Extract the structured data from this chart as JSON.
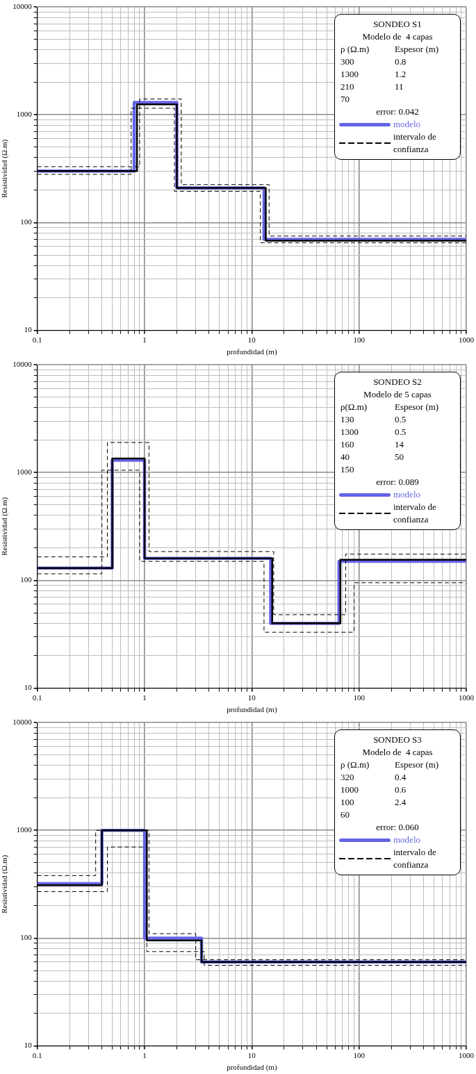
{
  "chart_data": [
    {
      "type": "step",
      "title": "SONDEO S1",
      "subtitle": "Modelo de  4 capas",
      "xlabel": "profundidad (m)",
      "ylabel": "Resistividad (Ω.m)",
      "log": "xy",
      "grid": true,
      "legend": "top right",
      "marker": "none",
      "annotations": [
        "ρ (Ω.m)\tEspesor (m)",
        "300\t0.8",
        "1300\t1.2",
        "210\t11",
        "70\t",
        "error: 0.042"
      ],
      "xlim": [
        0.1,
        1000
      ],
      "ylim": [
        10,
        10000
      ],
      "xticks": [
        0.1,
        {
          "value": 0.2,
          "label": null
        },
        {
          "value": 0.3,
          "label": null
        },
        {
          "value": 0.4,
          "label": null
        },
        {
          "value": 0.5,
          "label": null
        },
        {
          "value": 0.6,
          "label": null
        },
        {
          "value": 0.7,
          "label": null
        },
        {
          "value": 0.8,
          "label": null
        },
        {
          "value": 0.9,
          "label": null
        },
        1,
        {
          "value": 2,
          "label": null
        },
        {
          "value": 3,
          "label": null
        },
        {
          "value": 4,
          "label": null
        },
        {
          "value": 5,
          "label": null
        },
        {
          "value": 6,
          "label": null
        },
        {
          "value": 7,
          "label": null
        },
        {
          "value": 8,
          "label": null
        },
        {
          "value": 9,
          "label": null
        },
        10,
        {
          "value": 20,
          "label": null
        },
        {
          "value": 30,
          "label": null
        },
        {
          "value": 40,
          "label": null
        },
        {
          "value": 50,
          "label": null
        },
        {
          "value": 60,
          "label": null
        },
        {
          "value": 70,
          "label": null
        },
        {
          "value": 80,
          "label": null
        },
        {
          "value": 90,
          "label": null
        },
        100,
        {
          "value": 200,
          "label": null
        },
        {
          "value": 300,
          "label": null
        },
        {
          "value": 400,
          "label": null
        },
        {
          "value": 500,
          "label": null
        },
        {
          "value": 600,
          "label": null
        },
        {
          "value": 700,
          "label": null
        },
        {
          "value": 800,
          "label": null
        },
        {
          "value": 900,
          "label": null
        },
        1000
      ],
      "yticks": [
        10,
        {
          "value": 20,
          "label": null
        },
        {
          "value": 30,
          "label": null
        },
        {
          "value": 40,
          "label": null
        },
        {
          "value": 50,
          "label": null
        },
        {
          "value": 60,
          "label": null
        },
        {
          "value": 70,
          "label": null
        },
        {
          "value": 80,
          "label": null
        },
        {
          "value": 90,
          "label": null
        },
        100,
        {
          "value": 200,
          "label": null
        },
        {
          "value": 300,
          "label": null
        },
        {
          "value": 400,
          "label": null
        },
        {
          "value": 500,
          "label": null
        },
        {
          "value": 600,
          "label": null
        },
        {
          "value": 700,
          "label": null
        },
        {
          "value": 800,
          "label": null
        },
        {
          "value": 900,
          "label": null
        },
        1000,
        {
          "value": 2000,
          "label": null
        },
        {
          "value": 3000,
          "label": null
        },
        {
          "value": 4000,
          "label": null
        },
        {
          "value": 5000,
          "label": null
        },
        {
          "value": 6000,
          "label": null
        },
        {
          "value": 7000,
          "label": null
        },
        {
          "value": 8000,
          "label": null
        },
        {
          "value": 9000,
          "label": null
        },
        10000
      ],
      "series": [
        {
          "color": "#000000",
          "line_style": "dashed",
          "x": [
            0.1,
            0.9,
            2.2,
            14.5,
            1000
          ],
          "values": [
            330,
            1400,
            225,
            75,
            75
          ]
        },
        {
          "name": "intervalo de confianza",
          "color": "#000000",
          "line_style": "dashed",
          "x": [
            0.1,
            0.75,
            1.9,
            12,
            1000
          ],
          "values": [
            280,
            1150,
            195,
            65,
            65
          ]
        },
        {
          "color": "#000000",
          "line_style": "solid",
          "x": [
            0.1,
            0.85,
            2,
            13.5,
            1000
          ],
          "values": [
            300,
            1250,
            210,
            68,
            68
          ]
        },
        {
          "name": "modelo",
          "color": "#6464e6",
          "line_style": "solid",
          "x": [
            0.1,
            0.8,
            2,
            13,
            1000
          ],
          "values": [
            300,
            1300,
            210,
            70,
            70
          ]
        }
      ]
    },
    {
      "type": "step",
      "title": "SONDEO S2",
      "subtitle": "Modelo de 5 capas",
      "xlabel": "profundidad (m)",
      "ylabel": "Resistividad (Ω.m)",
      "log": "xy",
      "grid": true,
      "legend": "top right",
      "marker": "none",
      "annotations": [
        "ρ(Ω.m)\tEspesor (m)",
        "130\t0.5",
        "1300\t0.5",
        "160\t14",
        "40\t50",
        "150\t",
        "error: 0.089"
      ],
      "xlim": [
        0.1,
        1000
      ],
      "ylim": [
        10,
        10000
      ],
      "xticks": [
        0.1,
        {
          "value": 0.2,
          "label": null
        },
        {
          "value": 0.3,
          "label": null
        },
        {
          "value": 0.4,
          "label": null
        },
        {
          "value": 0.5,
          "label": null
        },
        {
          "value": 0.6,
          "label": null
        },
        {
          "value": 0.7,
          "label": null
        },
        {
          "value": 0.8,
          "label": null
        },
        {
          "value": 0.9,
          "label": null
        },
        1,
        {
          "value": 2,
          "label": null
        },
        {
          "value": 3,
          "label": null
        },
        {
          "value": 4,
          "label": null
        },
        {
          "value": 5,
          "label": null
        },
        {
          "value": 6,
          "label": null
        },
        {
          "value": 7,
          "label": null
        },
        {
          "value": 8,
          "label": null
        },
        {
          "value": 9,
          "label": null
        },
        10,
        {
          "value": 20,
          "label": null
        },
        {
          "value": 30,
          "label": null
        },
        {
          "value": 40,
          "label": null
        },
        {
          "value": 50,
          "label": null
        },
        {
          "value": 60,
          "label": null
        },
        {
          "value": 70,
          "label": null
        },
        {
          "value": 80,
          "label": null
        },
        {
          "value": 90,
          "label": null
        },
        100,
        {
          "value": 200,
          "label": null
        },
        {
          "value": 300,
          "label": null
        },
        {
          "value": 400,
          "label": null
        },
        {
          "value": 500,
          "label": null
        },
        {
          "value": 600,
          "label": null
        },
        {
          "value": 700,
          "label": null
        },
        {
          "value": 800,
          "label": null
        },
        {
          "value": 900,
          "label": null
        },
        1000
      ],
      "yticks": [
        10,
        {
          "value": 20,
          "label": null
        },
        {
          "value": 30,
          "label": null
        },
        {
          "value": 40,
          "label": null
        },
        {
          "value": 50,
          "label": null
        },
        {
          "value": 60,
          "label": null
        },
        {
          "value": 70,
          "label": null
        },
        {
          "value": 80,
          "label": null
        },
        {
          "value": 90,
          "label": null
        },
        100,
        {
          "value": 200,
          "label": null
        },
        {
          "value": 300,
          "label": null
        },
        {
          "value": 400,
          "label": null
        },
        {
          "value": 500,
          "label": null
        },
        {
          "value": 600,
          "label": null
        },
        {
          "value": 700,
          "label": null
        },
        {
          "value": 800,
          "label": null
        },
        {
          "value": 900,
          "label": null
        },
        1000,
        {
          "value": 2000,
          "label": null
        },
        {
          "value": 3000,
          "label": null
        },
        {
          "value": 4000,
          "label": null
        },
        {
          "value": 5000,
          "label": null
        },
        {
          "value": 6000,
          "label": null
        },
        {
          "value": 7000,
          "label": null
        },
        {
          "value": 8000,
          "label": null
        },
        {
          "value": 9000,
          "label": null
        },
        10000
      ],
      "series": [
        {
          "color": "#000000",
          "line_style": "dashed",
          "x": [
            0.1,
            0.45,
            1.1,
            16,
            75,
            1000
          ],
          "values": [
            165,
            1900,
            185,
            48,
            175,
            175
          ]
        },
        {
          "name": "intervalo de confianza",
          "color": "#000000",
          "line_style": "dashed",
          "x": [
            0.1,
            0.4,
            0.9,
            13,
            90,
            1000
          ],
          "values": [
            115,
            1050,
            150,
            33,
            95,
            95
          ]
        },
        {
          "color": "#000000",
          "line_style": "solid",
          "x": [
            0.1,
            0.5,
            1,
            15.5,
            67,
            1000
          ],
          "values": [
            130,
            1350,
            160,
            40,
            155,
            155
          ]
        },
        {
          "name": "modelo",
          "color": "#6464e6",
          "line_style": "solid",
          "x": [
            0.1,
            0.5,
            1,
            15,
            65,
            1000
          ],
          "values": [
            130,
            1300,
            160,
            40,
            150,
            150
          ]
        }
      ]
    },
    {
      "type": "step",
      "title": "SONDEO S3",
      "subtitle": "Modelo de  4 capas",
      "xlabel": "profundidad (m)",
      "ylabel": "Resistividad (Ω.m)",
      "log": "xy",
      "grid": true,
      "legend": "top right",
      "marker": "none",
      "annotations": [
        "ρ (Ω.m)\tEspesor (m)",
        "320\t0.4",
        "1000\t0.6",
        "100\t2.4",
        "60\t",
        "error: 0.060"
      ],
      "xlim": [
        0.1,
        1000
      ],
      "ylim": [
        10,
        10000
      ],
      "xticks": [
        0.1,
        {
          "value": 0.2,
          "label": null
        },
        {
          "value": 0.3,
          "label": null
        },
        {
          "value": 0.4,
          "label": null
        },
        {
          "value": 0.5,
          "label": null
        },
        {
          "value": 0.6,
          "label": null
        },
        {
          "value": 0.7,
          "label": null
        },
        {
          "value": 0.8,
          "label": null
        },
        {
          "value": 0.9,
          "label": null
        },
        1,
        {
          "value": 2,
          "label": null
        },
        {
          "value": 3,
          "label": null
        },
        {
          "value": 4,
          "label": null
        },
        {
          "value": 5,
          "label": null
        },
        {
          "value": 6,
          "label": null
        },
        {
          "value": 7,
          "label": null
        },
        {
          "value": 8,
          "label": null
        },
        {
          "value": 9,
          "label": null
        },
        10,
        {
          "value": 20,
          "label": null
        },
        {
          "value": 30,
          "label": null
        },
        {
          "value": 40,
          "label": null
        },
        {
          "value": 50,
          "label": null
        },
        {
          "value": 60,
          "label": null
        },
        {
          "value": 70,
          "label": null
        },
        {
          "value": 80,
          "label": null
        },
        {
          "value": 90,
          "label": null
        },
        100,
        {
          "value": 200,
          "label": null
        },
        {
          "value": 300,
          "label": null
        },
        {
          "value": 400,
          "label": null
        },
        {
          "value": 500,
          "label": null
        },
        {
          "value": 600,
          "label": null
        },
        {
          "value": 700,
          "label": null
        },
        {
          "value": 800,
          "label": null
        },
        {
          "value": 900,
          "label": null
        },
        1000
      ],
      "yticks": [
        10,
        {
          "value": 20,
          "label": null
        },
        {
          "value": 30,
          "label": null
        },
        {
          "value": 40,
          "label": null
        },
        {
          "value": 50,
          "label": null
        },
        {
          "value": 60,
          "label": null
        },
        {
          "value": 70,
          "label": null
        },
        {
          "value": 80,
          "label": null
        },
        {
          "value": 90,
          "label": null
        },
        100,
        {
          "value": 200,
          "label": null
        },
        {
          "value": 300,
          "label": null
        },
        {
          "value": 400,
          "label": null
        },
        {
          "value": 500,
          "label": null
        },
        {
          "value": 600,
          "label": null
        },
        {
          "value": 700,
          "label": null
        },
        {
          "value": 800,
          "label": null
        },
        {
          "value": 900,
          "label": null
        },
        1000,
        {
          "value": 2000,
          "label": null
        },
        {
          "value": 3000,
          "label": null
        },
        {
          "value": 4000,
          "label": null
        },
        {
          "value": 5000,
          "label": null
        },
        {
          "value": 6000,
          "label": null
        },
        {
          "value": 7000,
          "label": null
        },
        {
          "value": 8000,
          "label": null
        },
        {
          "value": 9000,
          "label": null
        },
        10000
      ],
      "series": [
        {
          "color": "#000000",
          "line_style": "dashed",
          "x": [
            0.1,
            0.35,
            1.1,
            3,
            1000
          ],
          "values": [
            380,
            1000,
            110,
            63,
            63
          ]
        },
        {
          "name": "intervalo de confianza",
          "color": "#000000",
          "line_style": "dashed",
          "x": [
            0.1,
            0.45,
            1.05,
            3.6,
            1000
          ],
          "values": [
            270,
            700,
            75,
            56,
            56
          ]
        },
        {
          "color": "#000000",
          "line_style": "solid",
          "x": [
            0.1,
            0.4,
            1.05,
            3.4,
            1000
          ],
          "values": [
            310,
            1000,
            95,
            60,
            60
          ]
        },
        {
          "name": "modelo",
          "color": "#6464e6",
          "line_style": "solid",
          "x": [
            0.1,
            0.4,
            1,
            3.4,
            1000
          ],
          "values": [
            320,
            1000,
            100,
            60,
            60
          ]
        }
      ]
    }
  ]
}
